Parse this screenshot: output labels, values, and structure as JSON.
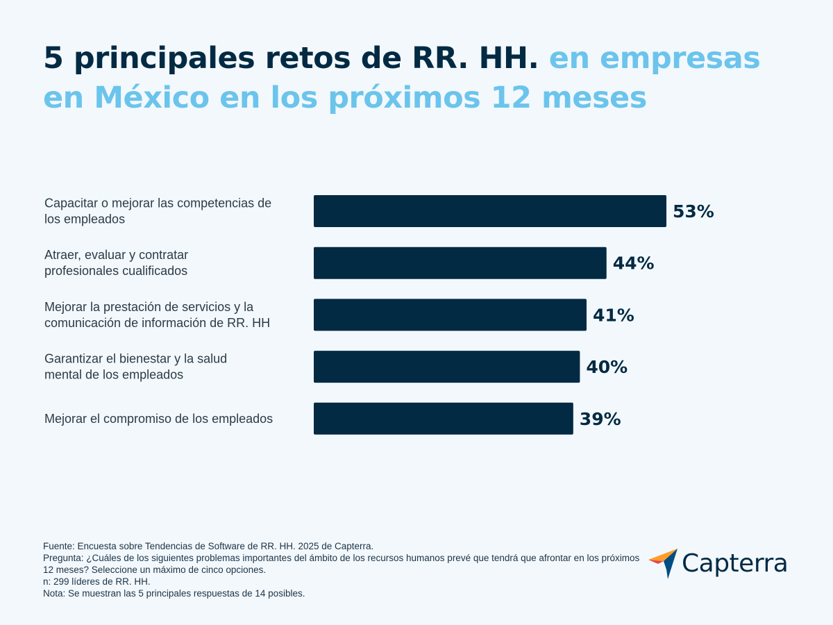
{
  "title": {
    "part1": "5 principales retos de RR. HH.",
    "part2": "en empresas en México en los próximos 12 meses"
  },
  "chart_data": {
    "type": "bar",
    "orientation": "horizontal",
    "categories": [
      [
        "Capacitar o mejorar las competencias de",
        "los empleados"
      ],
      [
        "Atraer, evaluar y contratar",
        "profesionales cualificados"
      ],
      [
        "Mejorar la prestación de servicios y la",
        "comunicación de información de RR. HH"
      ],
      [
        "Garantizar el bienestar y la salud",
        "mental de los empleados"
      ],
      [
        "Mejorar el compromiso de los empleados"
      ]
    ],
    "values": [
      53,
      44,
      41,
      40,
      39
    ],
    "value_labels": [
      "53%",
      "44%",
      "41%",
      "40%",
      "39%"
    ],
    "unit": "%",
    "grid": false,
    "legend": "none",
    "bar_color": "#022a43"
  },
  "footnotes": [
    "Fuente: Encuesta sobre Tendencias de Software de RR. HH. 2025 de Capterra.",
    "Pregunta: ¿Cuáles de los siguientes problemas importantes del ámbito de los recursos humanos prevé que tendrá que afrontar en los próximos 12 meses? Seleccione un máximo de cinco opciones.",
    "n: 299 líderes de RR. HH.",
    "Nota: Se muestran las 5 principales respuestas de 14 posibles."
  ],
  "logo": {
    "icon": "capterra-arrow-icon",
    "wordmark": "Capterra"
  },
  "colors": {
    "background": "#f3f8fc",
    "title_dark": "#022a43",
    "title_light": "#6bc4ec",
    "bar": "#022a43"
  }
}
